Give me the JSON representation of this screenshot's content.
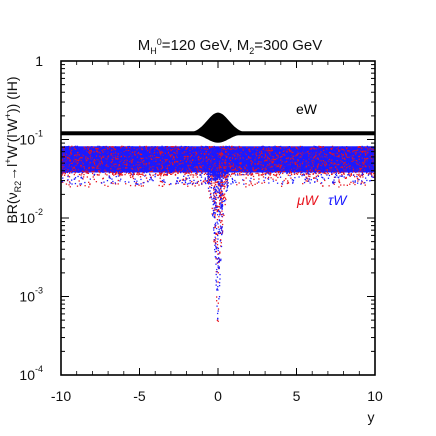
{
  "chart_data": {
    "type": "scatter",
    "title": "M_H^0=120 GeV, M_2=300 GeV",
    "title_parts": {
      "m_h": "M",
      "m_h_sub": "H",
      "m_h_sup": "0",
      "m_h_val": "=120 GeV, ",
      "m2": "M",
      "m2_sub": "2",
      "m2_val": "=300 GeV"
    },
    "xlabel": "y",
    "ylabel": "BR(ν_R2 → l^+W^-(l^-W^+)) (IH)",
    "ylabel_parts": {
      "pre": "BR(ν",
      "sub": "R2",
      "mid": "→l",
      "s1": "+",
      "w1": "W",
      "s2": "-",
      "paren": "(l",
      "s3": "-",
      "w2": "W",
      "s4": "+",
      "post": ")) (IH)"
    },
    "xlim": [
      -10,
      10
    ],
    "ylim": [
      0.0001,
      1
    ],
    "yscale": "log",
    "x_ticks": [
      -10,
      -5,
      0,
      5,
      10
    ],
    "x_tick_labels": [
      "-10",
      "-5",
      "0",
      "5",
      "10"
    ],
    "y_ticks": [
      0.0001,
      0.001,
      0.01,
      0.1,
      1
    ],
    "y_tick_labels": [
      {
        "base": "10",
        "exp": "-4"
      },
      {
        "base": "10",
        "exp": "-3"
      },
      {
        "base": "10",
        "exp": "-2"
      },
      {
        "base": "10",
        "exp": "-1"
      },
      {
        "base": "1",
        "exp": ""
      }
    ],
    "grid": false,
    "annotations": {
      "eW": "eW",
      "muW": "μW",
      "tauW": "τW"
    },
    "series": [
      {
        "name": "eW",
        "color": "#000000",
        "band": {
          "baseline": 0.12,
          "peak_at_y0": 0.22,
          "peak_width": 0.7
        }
      },
      {
        "name": "μW",
        "color": "#e8141e",
        "band": {
          "upper": 0.082,
          "lower": 0.035,
          "dip_min_at_y0": 0.00015
        }
      },
      {
        "name": "τW",
        "color": "#1a1aff",
        "band": {
          "upper": 0.082,
          "lower": 0.038,
          "dip_min_at_y0": 0.00017
        }
      }
    ]
  }
}
